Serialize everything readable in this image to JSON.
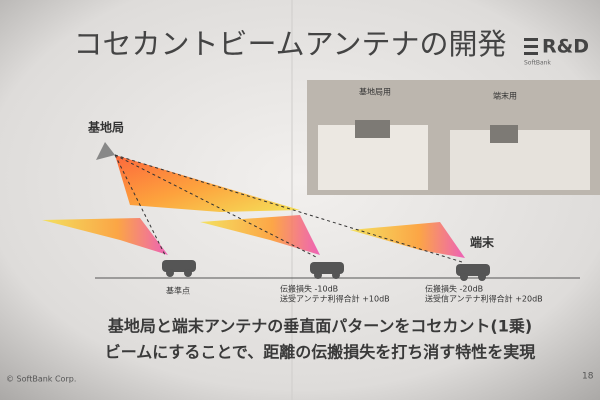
{
  "header": {
    "title": "コセカントビームアンテナの開発",
    "logo": "R&D",
    "logo_sub": "SoftBank"
  },
  "photos": [
    {
      "label": "基地局用"
    },
    {
      "label": "端末用"
    }
  ],
  "diagram": {
    "base_station": "基地局",
    "terminal": "端末",
    "reference": "基準点",
    "points": [
      {
        "lines": [
          "伝搬損失 -10dB",
          "送受アンテナ利得合計 +10dB"
        ]
      },
      {
        "lines": [
          "伝搬損失 -20dB",
          "送受信アンテナ利得合計 +20dB"
        ]
      }
    ]
  },
  "caption": [
    "基地局と端末アンテナの垂直面パターンをコセカント(1乗)",
    "ビームにすることで、距離の伝搬損失を打ち消す特性を実現"
  ],
  "footer": {
    "copyright": "© SoftBank Corp.",
    "page": "18"
  }
}
